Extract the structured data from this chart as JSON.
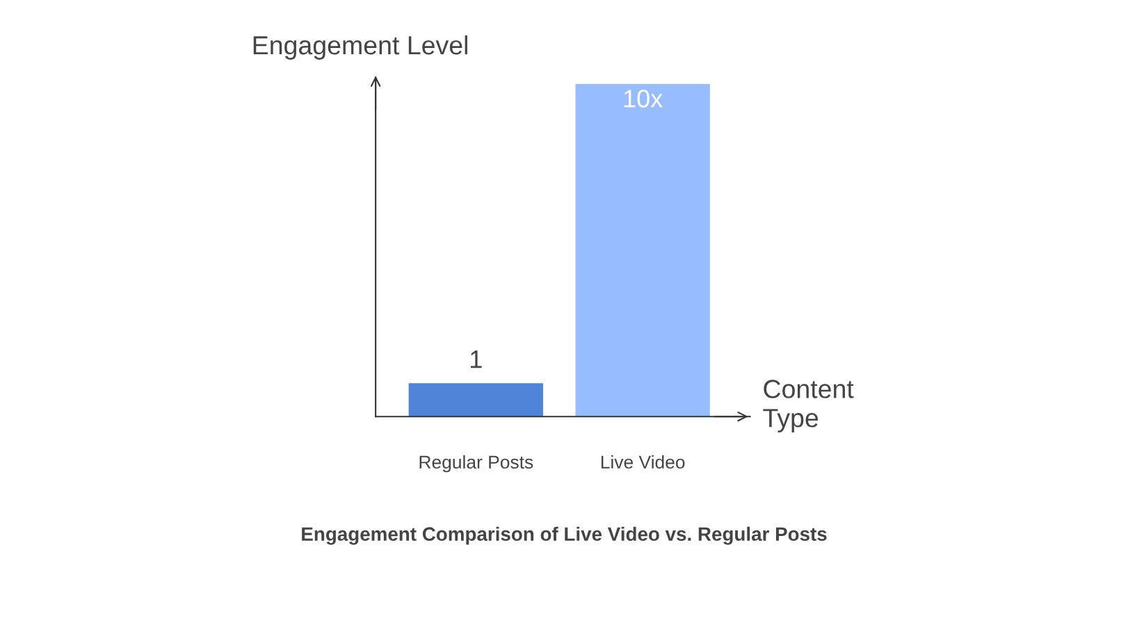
{
  "chart_data": {
    "type": "bar",
    "title": "Engagement Comparison of Live Video vs. Regular Posts",
    "xlabel": "Content\nType",
    "ylabel": "Engagement Level",
    "categories": [
      "Regular Posts",
      "Live Video"
    ],
    "values": [
      1,
      10
    ],
    "colors": [
      "#5084d9",
      "#97bcff"
    ],
    "value_labels": [
      "1",
      "10x"
    ],
    "ylim": [
      0,
      10.2
    ],
    "grid": false,
    "legend": false
  }
}
